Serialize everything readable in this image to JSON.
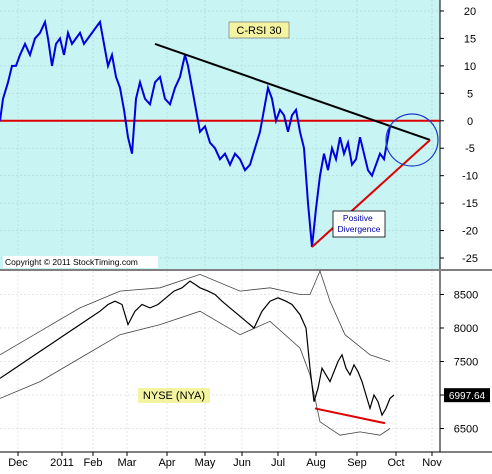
{
  "chart_data": [
    {
      "type": "line",
      "title": "C-RSI 30",
      "yticks": [
        20,
        15,
        10,
        5,
        0,
        -5,
        -10,
        -15,
        -20,
        -25
      ],
      "ylim": [
        -27,
        22
      ],
      "xlim": [
        0,
        440
      ],
      "grid": true,
      "copyright": "Copyright © 2011 StockTiming.com",
      "annotation": "Positive\nDivergence",
      "colors": {
        "background": "#c8f4f4",
        "line": "#0000dd",
        "zero_line": "#dd0000",
        "trendline": "#000000",
        "support": "#dd0000",
        "circle": "#1a3ccc"
      },
      "series": [
        {
          "points": [
            [
              0,
              0
            ],
            [
              3,
              4
            ],
            [
              8,
              7
            ],
            [
              12,
              10
            ],
            [
              16,
              10
            ],
            [
              20,
              12
            ],
            [
              25,
              14
            ],
            [
              30,
              12
            ],
            [
              35,
              15
            ],
            [
              40,
              16
            ],
            [
              45,
              18
            ],
            [
              48,
              15
            ],
            [
              52,
              10
            ],
            [
              56,
              14
            ],
            [
              60,
              15
            ],
            [
              64,
              12
            ],
            [
              68,
              16
            ],
            [
              72,
              14
            ],
            [
              76,
              15
            ],
            [
              80,
              16
            ],
            [
              84,
              14
            ],
            [
              88,
              15
            ],
            [
              92,
              16
            ],
            [
              96,
              17
            ],
            [
              100,
              18
            ],
            [
              104,
              14
            ],
            [
              108,
              10
            ],
            [
              112,
              12
            ],
            [
              116,
              8
            ],
            [
              120,
              6
            ],
            [
              124,
              2
            ],
            [
              128,
              -3
            ],
            [
              132,
              -6
            ],
            [
              136,
              4
            ],
            [
              140,
              7
            ],
            [
              145,
              4
            ],
            [
              150,
              3
            ],
            [
              155,
              7
            ],
            [
              160,
              8
            ],
            [
              165,
              4
            ],
            [
              170,
              3
            ],
            [
              175,
              6
            ],
            [
              180,
              8
            ],
            [
              185,
              12
            ],
            [
              188,
              10
            ],
            [
              192,
              6
            ],
            [
              196,
              2
            ],
            [
              200,
              -2
            ],
            [
              205,
              -1
            ],
            [
              210,
              -4
            ],
            [
              215,
              -5
            ],
            [
              220,
              -7
            ],
            [
              225,
              -6
            ],
            [
              230,
              -8
            ],
            [
              235,
              -6
            ],
            [
              240,
              -7
            ],
            [
              245,
              -9
            ],
            [
              250,
              -8
            ],
            [
              255,
              -5
            ],
            [
              260,
              -2
            ],
            [
              265,
              3
            ],
            [
              268,
              6
            ],
            [
              272,
              4
            ],
            [
              276,
              0
            ],
            [
              280,
              2
            ],
            [
              284,
              1
            ],
            [
              288,
              -2
            ],
            [
              292,
              1
            ],
            [
              296,
              2
            ],
            [
              300,
              -2
            ],
            [
              304,
              -5
            ],
            [
              308,
              -15
            ],
            [
              312,
              -23
            ],
            [
              316,
              -16
            ],
            [
              320,
              -10
            ],
            [
              324,
              -6
            ],
            [
              328,
              -9
            ],
            [
              332,
              -5
            ],
            [
              336,
              -7
            ],
            [
              340,
              -3
            ],
            [
              344,
              -6
            ],
            [
              348,
              -4
            ],
            [
              352,
              -8
            ],
            [
              356,
              -7
            ],
            [
              360,
              -3
            ],
            [
              364,
              -6
            ],
            [
              368,
              -9
            ],
            [
              372,
              -10
            ],
            [
              376,
              -8
            ],
            [
              380,
              -6
            ],
            [
              384,
              -7
            ],
            [
              388,
              -3
            ],
            [
              390,
              -1
            ]
          ]
        }
      ],
      "trendline": [
        [
          155,
          14
        ],
        [
          430,
          -3.5
        ]
      ],
      "support_line": [
        [
          312,
          -23
        ],
        [
          430,
          -3.5
        ]
      ],
      "circle_center": [
        412,
        -3.5
      ]
    },
    {
      "type": "line",
      "title": "NYSE (NYA)",
      "yticks": [
        8500,
        8000,
        7500,
        7000,
        6500
      ],
      "ylim": [
        6150,
        8850
      ],
      "xlim": [
        0,
        440
      ],
      "xticks": [
        "Dec",
        "2011",
        "Feb",
        "Mar",
        "Apr",
        "May",
        "Jun",
        "Jul",
        "Aug",
        "Sep",
        "Oct",
        "Nov"
      ],
      "last_value": "6997.64",
      "grid": true,
      "colors": {
        "price": "#000000",
        "bands": "#444444",
        "support": "#dd0000",
        "label_bg": "#f4f4a0"
      },
      "price": [
        [
          0,
          7250
        ],
        [
          10,
          7350
        ],
        [
          20,
          7450
        ],
        [
          30,
          7550
        ],
        [
          40,
          7650
        ],
        [
          50,
          7750
        ],
        [
          60,
          7850
        ],
        [
          70,
          7950
        ],
        [
          80,
          8050
        ],
        [
          90,
          8150
        ],
        [
          100,
          8250
        ],
        [
          108,
          8350
        ],
        [
          115,
          8400
        ],
        [
          122,
          8350
        ],
        [
          128,
          8050
        ],
        [
          135,
          8250
        ],
        [
          142,
          8350
        ],
        [
          150,
          8300
        ],
        [
          158,
          8350
        ],
        [
          166,
          8450
        ],
        [
          174,
          8550
        ],
        [
          182,
          8600
        ],
        [
          190,
          8700
        ],
        [
          195,
          8650
        ],
        [
          200,
          8600
        ],
        [
          208,
          8550
        ],
        [
          215,
          8500
        ],
        [
          222,
          8400
        ],
        [
          230,
          8300
        ],
        [
          238,
          8200
        ],
        [
          246,
          8100
        ],
        [
          254,
          8000
        ],
        [
          262,
          8250
        ],
        [
          270,
          8400
        ],
        [
          278,
          8450
        ],
        [
          286,
          8400
        ],
        [
          292,
          8350
        ],
        [
          300,
          8200
        ],
        [
          306,
          8000
        ],
        [
          310,
          7400
        ],
        [
          314,
          6900
        ],
        [
          318,
          7100
        ],
        [
          322,
          7400
        ],
        [
          326,
          7300
        ],
        [
          330,
          7200
        ],
        [
          334,
          7350
        ],
        [
          338,
          7500
        ],
        [
          342,
          7600
        ],
        [
          346,
          7400
        ],
        [
          350,
          7300
        ],
        [
          354,
          7450
        ],
        [
          358,
          7350
        ],
        [
          362,
          7200
        ],
        [
          366,
          7000
        ],
        [
          370,
          6800
        ],
        [
          374,
          7000
        ],
        [
          378,
          6900
        ],
        [
          382,
          6700
        ],
        [
          386,
          6800
        ],
        [
          390,
          6950
        ],
        [
          394,
          7000
        ]
      ],
      "band_upper": [
        [
          0,
          7600
        ],
        [
          40,
          7950
        ],
        [
          80,
          8300
        ],
        [
          120,
          8550
        ],
        [
          160,
          8600
        ],
        [
          200,
          8800
        ],
        [
          240,
          8550
        ],
        [
          270,
          8600
        ],
        [
          300,
          8500
        ],
        [
          310,
          8500
        ],
        [
          320,
          8850
        ],
        [
          330,
          8400
        ],
        [
          345,
          7900
        ],
        [
          370,
          7600
        ],
        [
          390,
          7500
        ]
      ],
      "band_lower": [
        [
          0,
          6950
        ],
        [
          40,
          7200
        ],
        [
          80,
          7550
        ],
        [
          120,
          7900
        ],
        [
          160,
          8050
        ],
        [
          200,
          8250
        ],
        [
          240,
          7900
        ],
        [
          270,
          8100
        ],
        [
          300,
          7700
        ],
        [
          310,
          7300
        ],
        [
          320,
          6600
        ],
        [
          340,
          6400
        ],
        [
          360,
          6450
        ],
        [
          380,
          6400
        ],
        [
          390,
          6500
        ]
      ],
      "support_line": [
        [
          315,
          6800
        ],
        [
          385,
          6580
        ]
      ]
    }
  ]
}
